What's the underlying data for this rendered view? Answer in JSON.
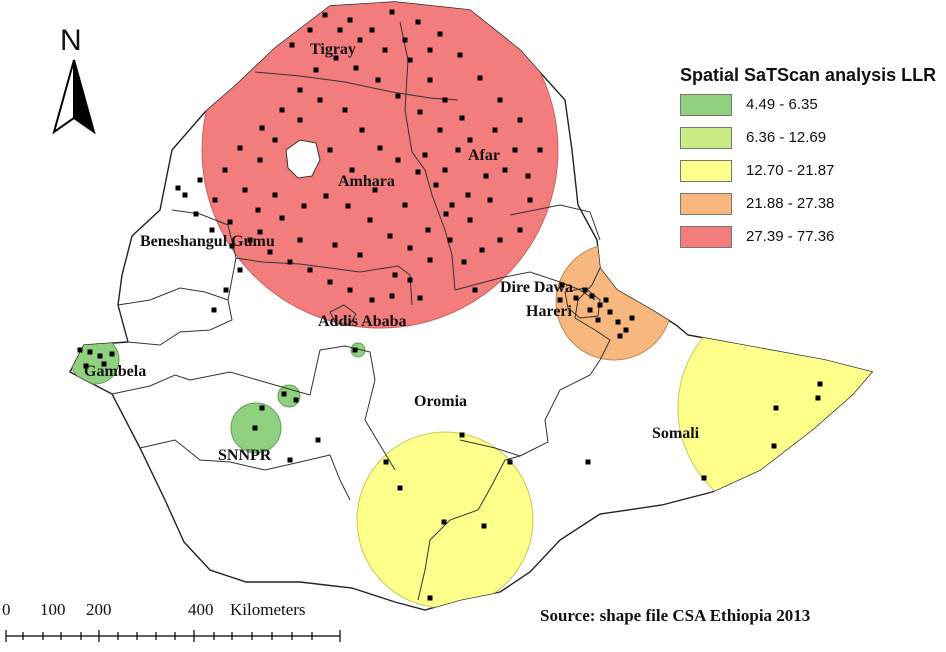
{
  "map": {
    "north_label": "N",
    "legend": {
      "title": "Spatial SaTScan analysis LLR",
      "items": [
        {
          "range": "4.49 - 6.35",
          "color": "#8fd17f"
        },
        {
          "range": "6.36 - 12.69",
          "color": "#c9ec86"
        },
        {
          "range": "12.70 - 21.87",
          "color": "#ffff8c"
        },
        {
          "range": "21.88 - 27.38",
          "color": "#f8b77e"
        },
        {
          "range": "27.39 - 77.36",
          "color": "#f37d7d"
        }
      ]
    },
    "regions": {
      "tigray": "Tigray",
      "amhara": "Amhara",
      "afar": "Afar",
      "benishangul": "Beneshangul Gumu",
      "addis": "Addis Ababa",
      "dire_dawa": "Dire Dawa",
      "harari": "Hareri",
      "gambela": "Gambela",
      "snnpr": "SNNPR",
      "oromia": "Oromia",
      "somali": "Somali"
    },
    "scale": {
      "tick_labels": [
        "0",
        "100",
        "200",
        "400"
      ],
      "unit": "Kilometers"
    },
    "source": "Source: shape file  CSA Ethiopia 2013"
  }
}
